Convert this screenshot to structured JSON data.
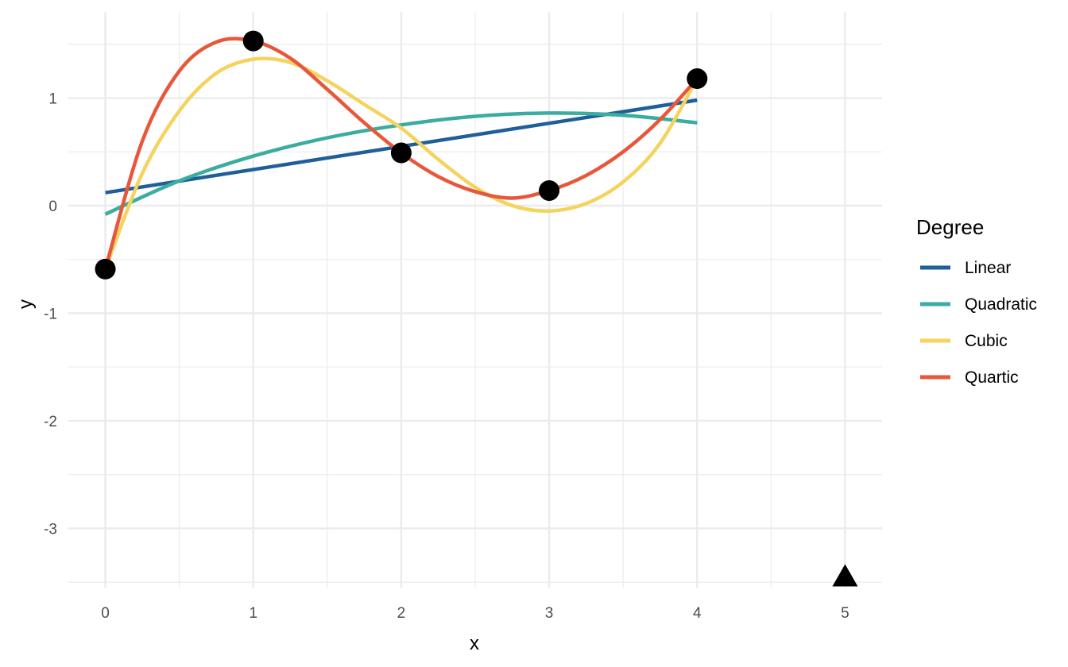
{
  "chart_data": {
    "type": "line",
    "xlabel": "x",
    "ylabel": "y",
    "xlim": [
      -0.25,
      5.25
    ],
    "ylim": [
      -3.55,
      1.8
    ],
    "x_ticks": [
      0,
      1,
      2,
      3,
      4,
      5
    ],
    "y_ticks": [
      -3,
      -2,
      -1,
      0,
      1
    ],
    "x_tick_labels": [
      "0",
      "1",
      "2",
      "3",
      "4",
      "5"
    ],
    "y_tick_labels": [
      "-3",
      "-2",
      "-1",
      "0",
      "1"
    ],
    "grid": true,
    "legend": {
      "title": "Degree",
      "position": "right"
    },
    "points": {
      "shape": "circle",
      "color": "#000000",
      "x": [
        0,
        1,
        2,
        3,
        4
      ],
      "y": [
        -0.59,
        1.53,
        0.49,
        0.14,
        1.18
      ]
    },
    "extra_marker": {
      "shape": "triangle",
      "color": "#000000",
      "x": 5,
      "y": -3.45
    },
    "series": [
      {
        "name": "Linear",
        "color": "#1F5F99",
        "x": [
          0,
          4
        ],
        "y": [
          0.12,
          0.98
        ]
      },
      {
        "name": "Quadratic",
        "color": "#3AADA0",
        "x": [
          0,
          0.5,
          1,
          1.5,
          2,
          2.5,
          3,
          3.5,
          4
        ],
        "y": [
          -0.08,
          0.23,
          0.46,
          0.63,
          0.75,
          0.83,
          0.86,
          0.84,
          0.77
        ]
      },
      {
        "name": "Cubic",
        "color": "#F4D35E",
        "x": [
          0,
          0.25,
          0.5,
          0.75,
          1,
          1.25,
          1.5,
          1.75,
          2,
          2.25,
          2.5,
          2.75,
          3,
          3.25,
          3.5,
          3.75,
          4
        ],
        "y": [
          -0.59,
          0.3,
          0.88,
          1.23,
          1.36,
          1.33,
          1.16,
          0.94,
          0.72,
          0.43,
          0.17,
          0.0,
          -0.05,
          0.02,
          0.22,
          0.58,
          1.18
        ]
      },
      {
        "name": "Quartic",
        "color": "#E8573A",
        "x": [
          0,
          0.25,
          0.5,
          0.75,
          1,
          1.25,
          1.5,
          1.75,
          2,
          2.25,
          2.5,
          2.75,
          3,
          3.25,
          3.5,
          3.75,
          4
        ],
        "y": [
          -0.59,
          0.6,
          1.25,
          1.52,
          1.53,
          1.37,
          1.08,
          0.77,
          0.49,
          0.27,
          0.13,
          0.07,
          0.14,
          0.28,
          0.5,
          0.8,
          1.18
        ]
      }
    ]
  }
}
